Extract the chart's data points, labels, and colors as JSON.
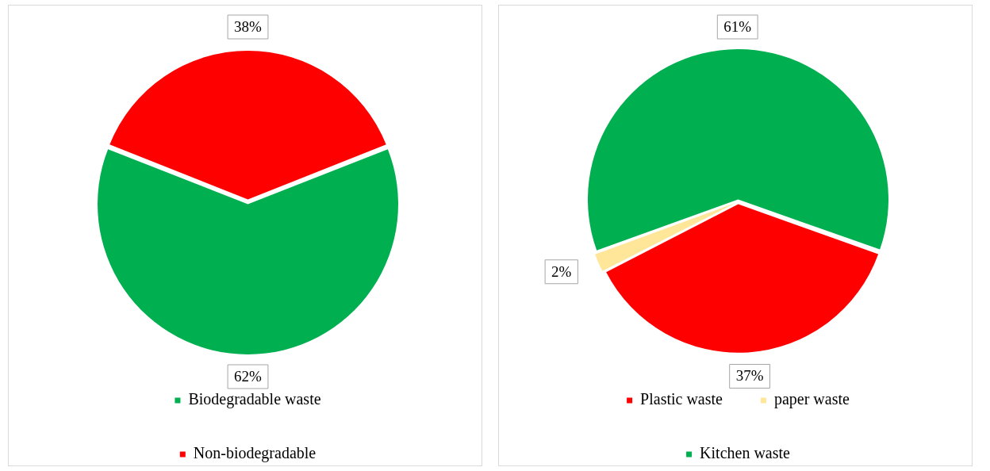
{
  "chart_data": [
    {
      "type": "pie",
      "categories": [
        "Biodegradable waste",
        "Non-biodegradable"
      ],
      "values": [
        62,
        38
      ],
      "colors": [
        "#00b050",
        "#ff0000"
      ],
      "value_labels": [
        "62%",
        "38%"
      ],
      "legend": "bottom"
    },
    {
      "type": "pie",
      "categories": [
        "Plastic waste",
        "paper waste",
        "Kitchen waste"
      ],
      "values": [
        37,
        2,
        61
      ],
      "colors": [
        "#ff0000",
        "#ffe699",
        "#00b050"
      ],
      "value_labels": [
        "37%",
        "2%",
        "61%"
      ],
      "legend": "bottom"
    }
  ]
}
